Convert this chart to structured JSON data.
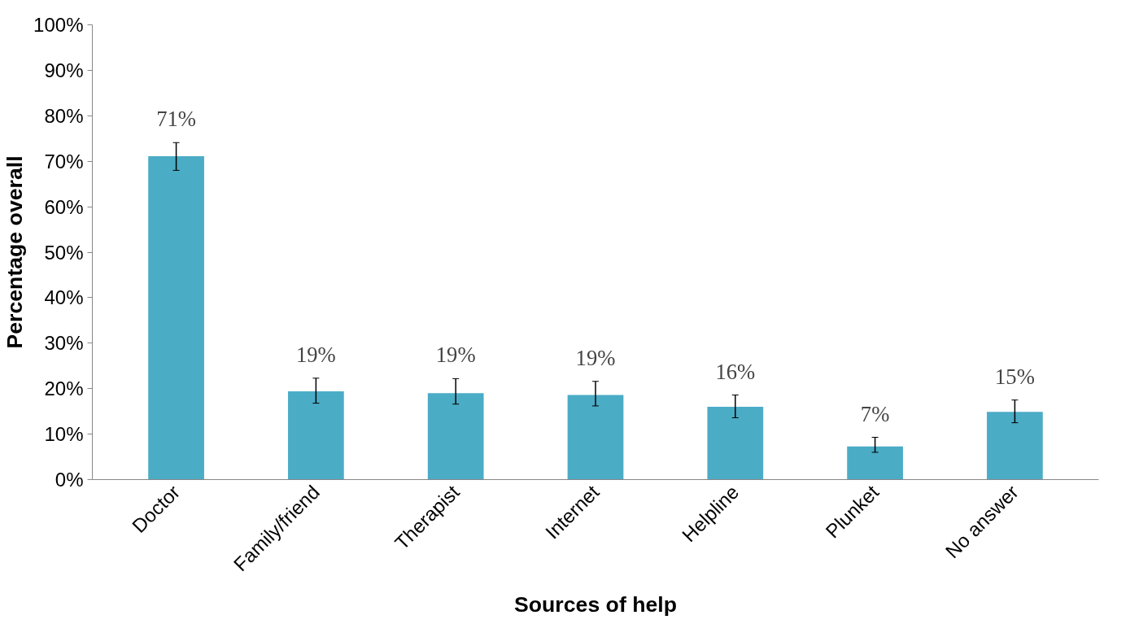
{
  "chart_data": {
    "type": "bar",
    "xlabel": "Sources of help",
    "ylabel": "Percentage overall",
    "categories": [
      "Doctor",
      "Family/friend",
      "Therapist",
      "Internet",
      "Helpline",
      "Plunket",
      "No answer"
    ],
    "values": [
      71.1,
      19.4,
      19.0,
      18.6,
      16.0,
      7.3,
      14.9
    ],
    "value_labels": [
      "71%",
      "19%",
      "19%",
      "19%",
      "16%",
      "7%",
      "15%"
    ],
    "errors": [
      [
        68.0,
        74.1
      ],
      [
        16.8,
        22.3
      ],
      [
        16.6,
        22.2
      ],
      [
        16.2,
        21.6
      ],
      [
        13.6,
        18.6
      ],
      [
        6.0,
        9.3
      ],
      [
        12.5,
        17.5
      ]
    ],
    "color": "#4bacc6",
    "ylim": [
      0,
      100
    ],
    "yticks": [
      {
        "value": 0,
        "label": "0%"
      },
      {
        "value": 10,
        "label": "10%"
      },
      {
        "value": 20,
        "label": "20%"
      },
      {
        "value": 30,
        "label": "30%"
      },
      {
        "value": 40,
        "label": "40%"
      },
      {
        "value": 50,
        "label": "50%"
      },
      {
        "value": 60,
        "label": "60%"
      },
      {
        "value": 70,
        "label": "70%"
      },
      {
        "value": 80,
        "label": "80%"
      },
      {
        "value": 90,
        "label": "90%"
      },
      {
        "value": 100,
        "label": "100%"
      }
    ],
    "grid": false
  }
}
